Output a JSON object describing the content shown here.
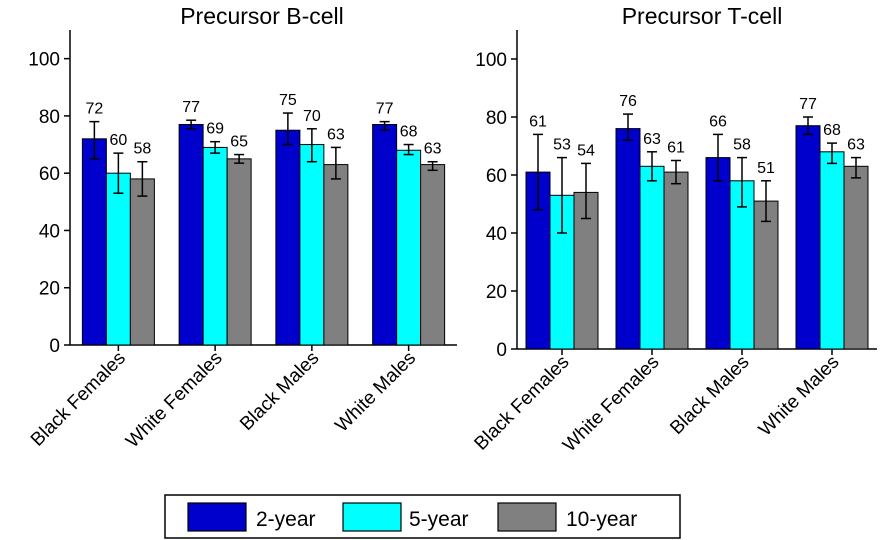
{
  "chart_data": [
    {
      "type": "bar",
      "title": "Precursor B-cell",
      "categories": [
        "Black Females",
        "White Females",
        "Black Males",
        "White Males"
      ],
      "ylim": [
        0,
        110
      ],
      "yticks": [
        0,
        20,
        40,
        60,
        80,
        100
      ],
      "grid": false,
      "series": [
        {
          "name": "2-year",
          "values": [
            72,
            77,
            75,
            77
          ],
          "errors": [
            [
              65,
              78
            ],
            [
              75.5,
              78.5
            ],
            [
              70,
              81
            ],
            [
              75,
              78
            ]
          ]
        },
        {
          "name": "5-year",
          "values": [
            60,
            69,
            70,
            68
          ],
          "errors": [
            [
              53,
              67
            ],
            [
              67,
              71
            ],
            [
              64,
              75.5
            ],
            [
              66.5,
              70
            ]
          ]
        },
        {
          "name": "10-year",
          "values": [
            58,
            65,
            63,
            63
          ],
          "errors": [
            [
              52,
              64
            ],
            [
              63.5,
              66.5
            ],
            [
              58,
              69
            ],
            [
              61,
              64
            ]
          ]
        }
      ]
    },
    {
      "type": "bar",
      "title": "Precursor T-cell",
      "categories": [
        "Black Females",
        "White Females",
        "Black Males",
        "White Males"
      ],
      "ylim": [
        0,
        110
      ],
      "yticks": [
        0,
        20,
        40,
        60,
        80,
        100
      ],
      "grid": false,
      "series": [
        {
          "name": "2-year",
          "values": [
            61,
            76,
            66,
            77
          ],
          "errors": [
            [
              48,
              74
            ],
            [
              72,
              81
            ],
            [
              58,
              74
            ],
            [
              74,
              80
            ]
          ]
        },
        {
          "name": "5-year",
          "values": [
            53,
            63,
            58,
            68
          ],
          "errors": [
            [
              40,
              66
            ],
            [
              58,
              68
            ],
            [
              49,
              66
            ],
            [
              64,
              71
            ]
          ]
        },
        {
          "name": "10-year",
          "values": [
            54,
            61,
            51,
            63
          ],
          "errors": [
            [
              45,
              64
            ],
            [
              57,
              65
            ],
            [
              44,
              58
            ],
            [
              59,
              66
            ]
          ]
        }
      ]
    }
  ],
  "legend": {
    "placement": "bottom",
    "items": [
      {
        "label": "2-year",
        "color": "#0000cc"
      },
      {
        "label": "5-year",
        "color": "#00ffff"
      },
      {
        "label": "10-year",
        "color": "#808080"
      }
    ]
  }
}
